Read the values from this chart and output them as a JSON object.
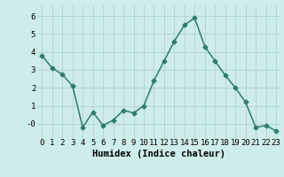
{
  "x": [
    0,
    1,
    2,
    3,
    4,
    5,
    6,
    7,
    8,
    9,
    10,
    11,
    12,
    13,
    14,
    15,
    16,
    17,
    18,
    19,
    20,
    21,
    22,
    23
  ],
  "y": [
    3.8,
    3.1,
    2.75,
    2.1,
    -0.2,
    0.65,
    -0.1,
    0.2,
    0.75,
    0.6,
    1.0,
    2.4,
    3.5,
    4.6,
    5.5,
    5.9,
    4.3,
    3.5,
    2.7,
    2.0,
    1.2,
    -0.2,
    -0.1,
    -0.4
  ],
  "xlabel": "Humidex (Indice chaleur)",
  "ylim": [
    -0.8,
    6.6
  ],
  "xlim": [
    -0.5,
    23.5
  ],
  "line_color": "#2d7c6e",
  "bg_color": "#ceecea",
  "grid_color": "#b0d4d0",
  "xlabel_fontsize": 7.5,
  "tick_fontsize": 6.5,
  "marker": "D",
  "marker_size": 2.5,
  "linewidth": 1.1
}
